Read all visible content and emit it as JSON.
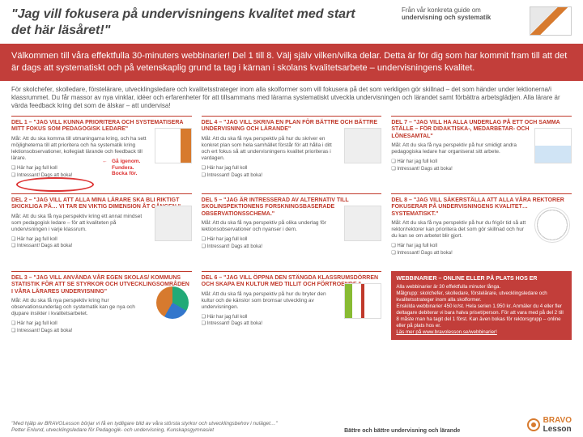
{
  "header": {
    "headline": "\"Jag vill fokusera på undervisningens kvalitet med start det här läsåret!\"",
    "guide_lead": "Från vår konkreta guide om",
    "guide_bold": "undervisning och systematik"
  },
  "red_band": "Välkommen till våra effektfulla 30-minuters webbinarier! Del 1 till 8. Välj själv vilken/vilka delar. Detta är för dig som har kommit fram till att det är dags att systematiskt och på vetenskaplig grund ta tag i kärnan i skolans kvalitetsarbete – undervisningens kvalitet.",
  "intro": "För skolchefer, skolledare, förstelärare, utvecklingsledare och kvalitetsstrateger inom alla skolformer som vill fokusera på det som verkligen gör skillnad – det som händer under lektionerna/i klassrummet. Du får massor av nya vinklar, idéer och erfarenheter för att tillsammans med lärarna systematiskt utveckla undervisningen och lärandet samt förbättra arbetsglädjen. Alla lärare är värda feedback kring det som de älskar – att undervisa!",
  "checks": {
    "a": "Här har jag full koll",
    "b": "Intressant! Dags att boka!"
  },
  "annot": {
    "l1": "Gå igenom.",
    "l2": "Fundera.",
    "l3": "Bocka för."
  },
  "cells": [
    {
      "title": "DEL 1 – \"JAG VILL KUNNA PRIORITERA OCH SYSTEMATISERA MITT FOKUS SOM PEDAGOGISK LEDARE\"",
      "body": "Mål: Att du ska komma till utmaningarna kring, och ha sett möjligheterna till att prioritera och ha systematik kring lektionsobservationer, kollegialt lärande och feedback till lärare."
    },
    {
      "title": "DEL 4 – \"JAG VILL SKRIVA EN PLAN FÖR BÄTTRE OCH BÄTTRE UNDERVISNING OCH LÄRANDE\"",
      "body": "Mål: Att du ska få nya perspektiv på hur du skriver en konkret plan som hela samhället förstår för att hålla i ditt och ert fokus så att undervisningens kvalitet prioriteras i vardagen."
    },
    {
      "title": "DEL 7 – \"JAG VILL HA ALLA UNDERLAG PÅ ETT OCH SAMMA STÄLLE – FÖR DIDAKTISKA-, MEDARBETAR- OCH LÖNESAMTAL\"",
      "body": "Mål: Att du ska få nya perspektiv på hur smidigt andra pedagogiska ledare har organiserat sitt arbete."
    },
    {
      "title": "DEL 2 – \"JAG VILL ATT ALLA MINA LÄRARE SKA BLI RIKTIGT SKICKLIGA PÅ… VI TAR EN VIKTIG DIMENSION ÅT GÅNGEN.\"",
      "body": "Mål: Att du ska få nya perspektiv kring ett annat mindset som pedagogisk ledare – för att kvaliteten på undervisningen i varje klassrum."
    },
    {
      "title": "DEL 5 – \"JAG ÄR INTRESSERAD AV ALTERNATIV TILL SKOLINSPEKTIONENS FORSKNINGSBASERADE OBSERVATIONSSCHEMA.\"",
      "body": "Mål: Att du ska få nya perspektiv på olika underlag för lektionsobservationer och nyanser i dem."
    },
    {
      "title": "DEL 8 – \"JAG VILL SÄKERSTÄLLA ATT ALLA VÅRA REKTORER FOKUSERAR PÅ UNDERVISNINGENS KVALITET… SYSTEMATISKT.\"",
      "body": "Mål: Att du ska få nya perspektiv på hur du frigör tid så att rektor/rektorer kan prioritera det som gör skillnad och hur du kan se om arbetet blir gjort."
    },
    {
      "title": "DEL 3 – \"JAG VILL ANVÄNDA VÅR EGEN SKOLAS/ KOMMUNS STATISTIK FÖR ATT SE STYRKOR OCH UTVECKLINGSOMRÅDEN I VÅRA LÄRARES UNDERVISNING\"",
      "body": "Mål: Att du ska få nya perspektiv kring hur observationsunderlag och systematik kan ge nya och djupare insikter i kvalitetsarbetet."
    },
    {
      "title": "DEL 6 – \"JAG VILL ÖPPNA DEN STÄNGDA KLASSRUMSDÖRREN OCH SKAPA EN KULTUR MED TILLIT OCH FÖRTROENDE.\"",
      "body": "Mål: Att du ska få nya perspektiv på hur du bryter den kultur och de känslor som bromsar utveckling av undervisningen."
    }
  ],
  "promo": {
    "title": "WEBBINARIER – ONLINE ELLER PÅ PLATS HOS ER",
    "l1": "Alla webbinarier är 30 effektfulla minuter långa.",
    "l2": "Målgrupp: skolchefer, skolledare, förstelärare, utvecklingsledare och kvalitetsstrateger inom alla skolformer.",
    "l3": "Enskilda webbinarier 450 kr/st. Hela serien 1.950 kr. Anmäler du 4 eller fler deltagare debiterar vi bara halva priset/person. För att vara med på del 2 till 8 måste man ha tagit del 1 först. Kan även bokas för rektorsgrupp – online eller på plats hos er.",
    "l4": "Läs mer på www.bravolesson.se/webbinarier!"
  },
  "footer": {
    "quote": "\"Med hjälp av BRAVOLesson börjar vi få en tydligare bild av våra största styrkor och utvecklingsbehov i nuläget…\"",
    "byline": "Petter Enlund, utvecklingsledare för Pedagogik- och undervisning, Kunskapsgymnasiet",
    "tagline": "Bättre och bättre undervisning och lärande",
    "logo1": "BRAVO",
    "logo2": "Lesson"
  }
}
